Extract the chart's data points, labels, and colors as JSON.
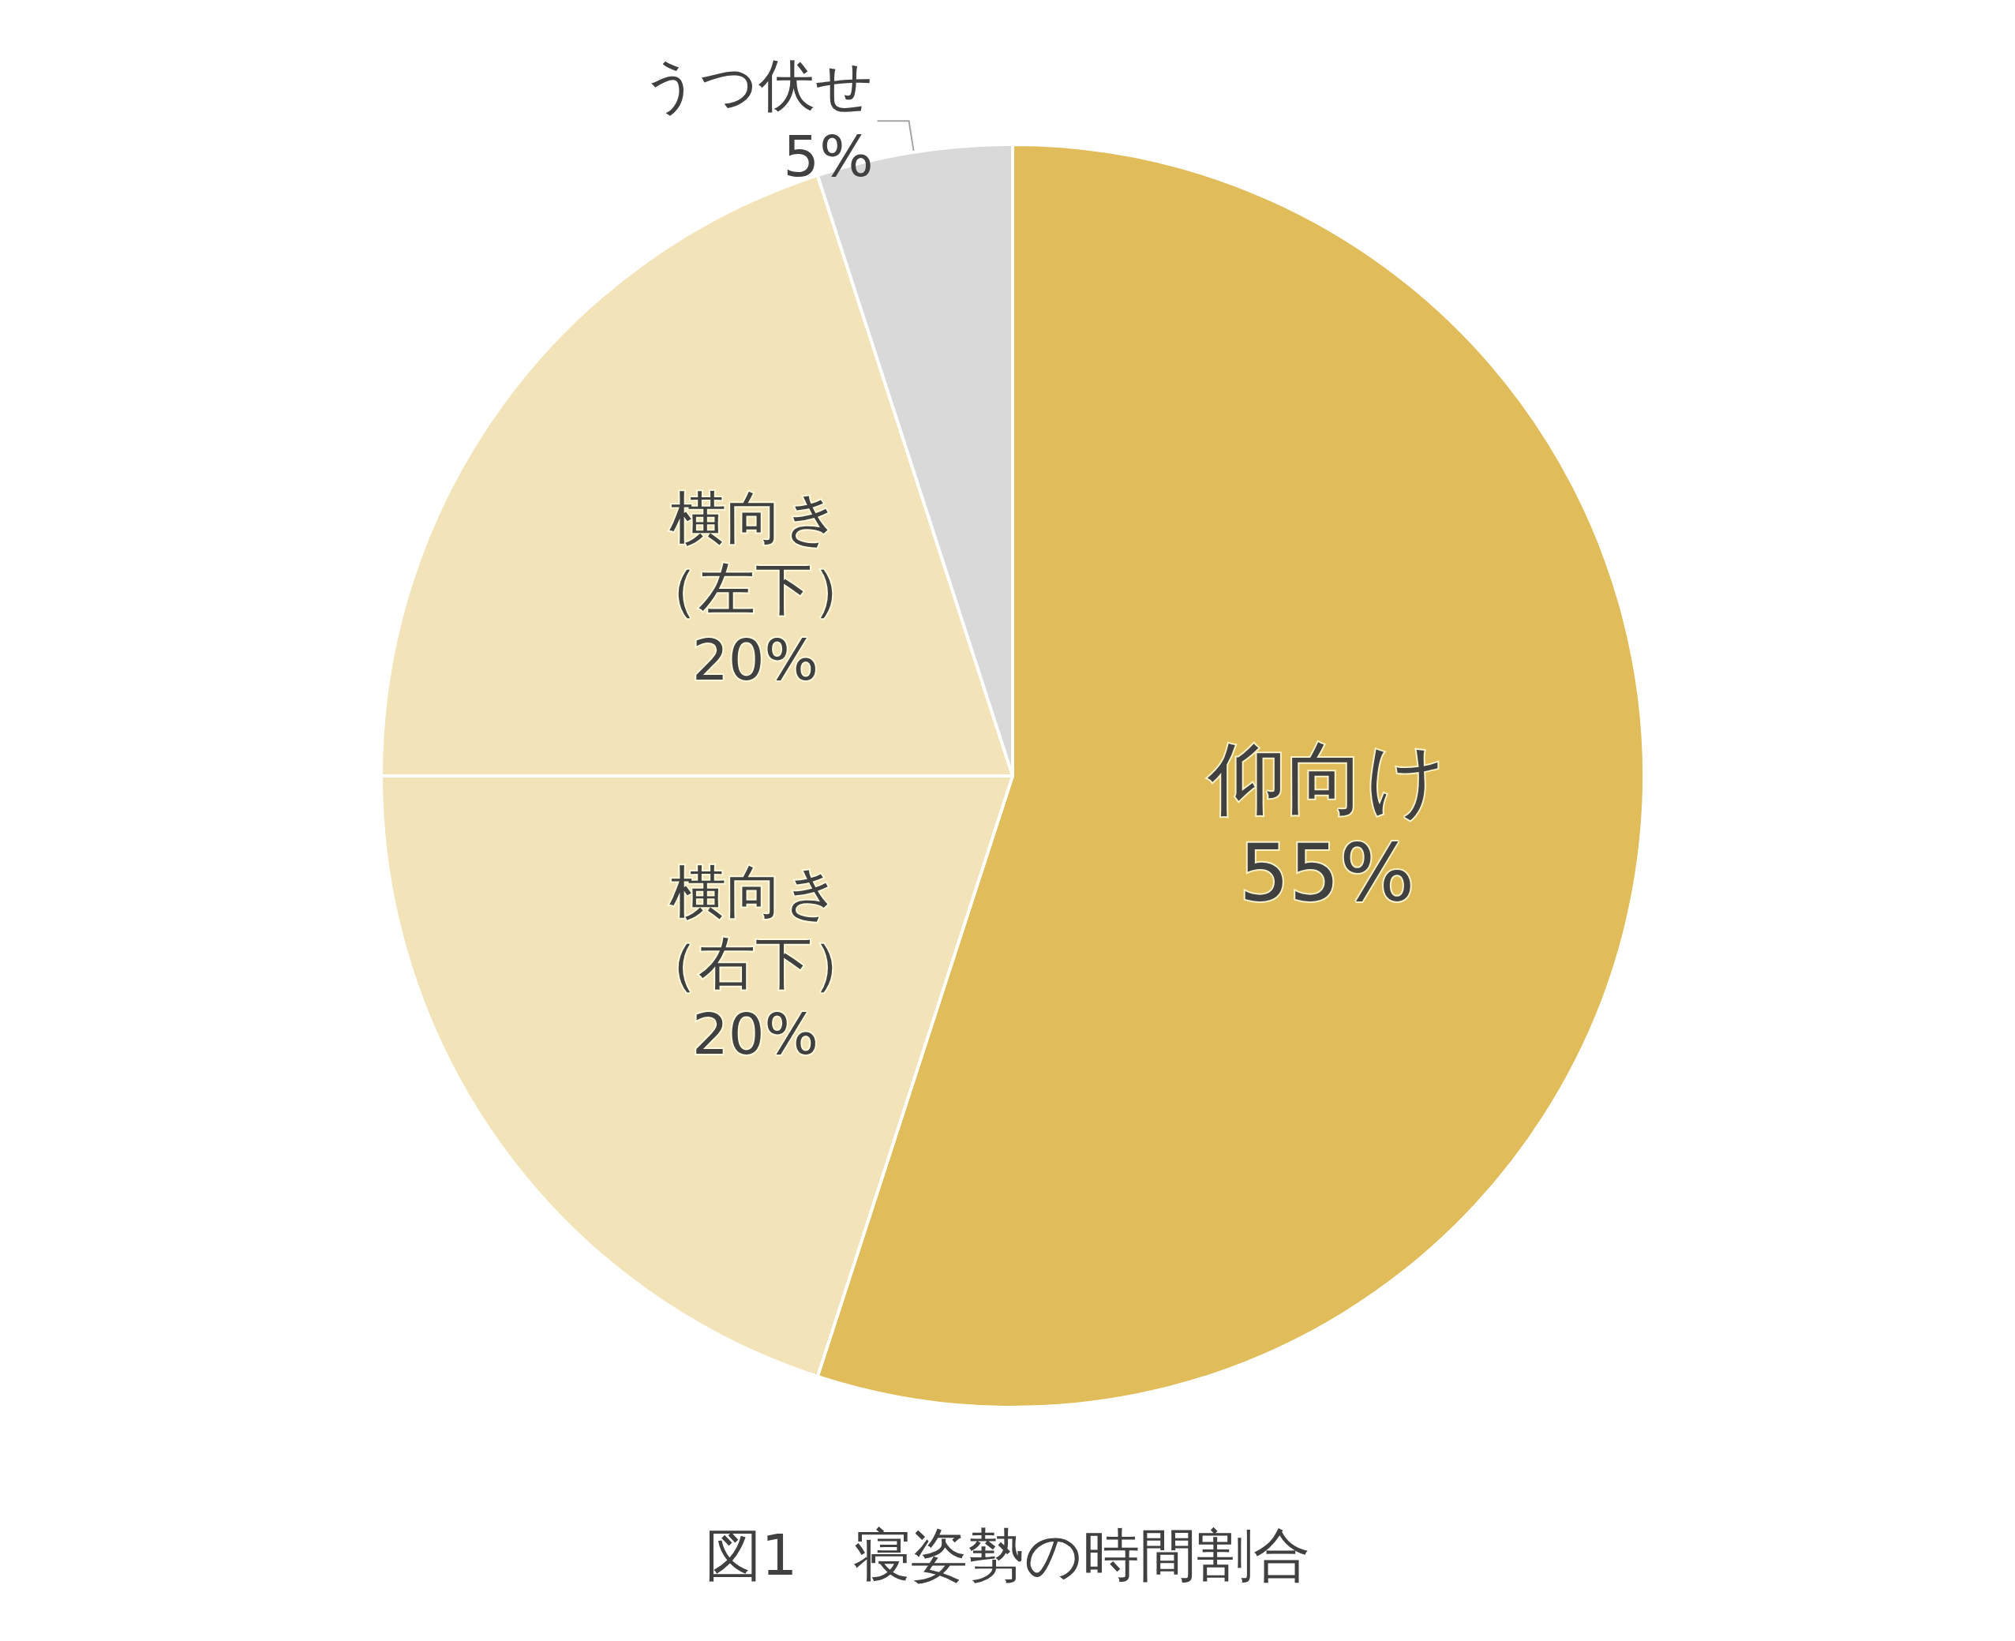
{
  "chart_data": {
    "type": "pie",
    "title": "図1　寝姿勢の時間割合",
    "categories": [
      "仰向け",
      "横向き（右下）",
      "横向き（左下）",
      "うつ伏せ"
    ],
    "values": [
      55,
      20,
      20,
      5
    ],
    "value_labels": [
      "55%",
      "20%",
      "20%",
      "5%"
    ],
    "colors": [
      "#e0bd5a",
      "#f3e3b8",
      "#f3e3b8",
      "#d9d9d9"
    ],
    "legend": false
  }
}
